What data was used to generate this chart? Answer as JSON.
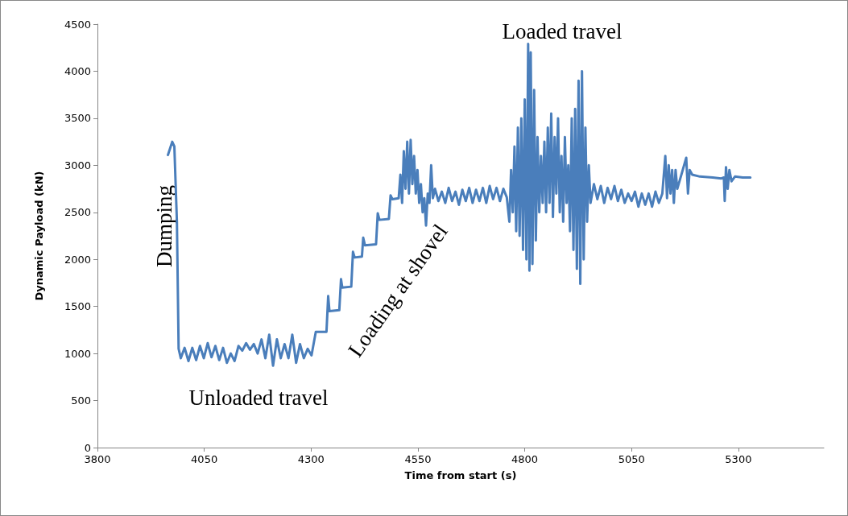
{
  "chart_data": {
    "type": "line",
    "xlabel": "Time from start (s)",
    "ylabel": "Dynamic Payload (kN)",
    "xlim": [
      3800,
      5500
    ],
    "xticks": [
      3800,
      4050,
      4300,
      4550,
      4800,
      5050,
      5300
    ],
    "ylim": [
      0,
      4500
    ],
    "yticks": [
      0,
      500,
      1000,
      1500,
      2000,
      2500,
      3000,
      3500,
      4000,
      4500
    ],
    "grid": false,
    "marker": "none",
    "line_style": "solid",
    "annotations": [
      "Dumping",
      "Unloaded travel",
      "Loading at shovel",
      "Loaded travel"
    ],
    "series": [
      {
        "color": "#4a7ebb",
        "x": [
          3965,
          3975,
          3980,
          3986,
          3990,
          3995,
          4004,
          4013,
          4022,
          4031,
          4040,
          4049,
          4058,
          4067,
          4076,
          4085,
          4094,
          4103,
          4112,
          4121,
          4130,
          4139,
          4148,
          4157,
          4166,
          4175,
          4184,
          4193,
          4202,
          4211,
          4220,
          4229,
          4238,
          4247,
          4256,
          4265,
          4274,
          4283,
          4292,
          4301,
          4311,
          4336,
          4340,
          4343,
          4366,
          4370,
          4373,
          4394,
          4398,
          4402,
          4419,
          4422,
          4426,
          4452,
          4456,
          4460,
          4482,
          4486,
          4490,
          4505,
          4509,
          4513,
          4517,
          4521,
          4525,
          4529,
          4533,
          4537,
          4541,
          4545,
          4549,
          4553,
          4557,
          4561,
          4565,
          4569,
          4573,
          4577,
          4581,
          4585,
          4590,
          4598,
          4606,
          4614,
          4622,
          4630,
          4638,
          4646,
          4654,
          4662,
          4670,
          4678,
          4686,
          4694,
          4702,
          4710,
          4718,
          4726,
          4734,
          4742,
          4750,
          4758,
          4764,
          4768,
          4772,
          4776,
          4780,
          4784,
          4788,
          4792,
          4796,
          4800,
          4804,
          4808,
          4811,
          4814,
          4818,
          4822,
          4826,
          4830,
          4834,
          4838,
          4842,
          4846,
          4850,
          4854,
          4858,
          4862,
          4866,
          4870,
          4874,
          4878,
          4882,
          4886,
          4890,
          4894,
          4898,
          4902,
          4906,
          4910,
          4914,
          4918,
          4922,
          4926,
          4930,
          4934,
          4938,
          4942,
          4946,
          4950,
          4954,
          4962,
          4970,
          4978,
          4986,
          4994,
          5002,
          5010,
          5018,
          5026,
          5034,
          5042,
          5050,
          5058,
          5066,
          5074,
          5082,
          5090,
          5098,
          5106,
          5114,
          5122,
          5129,
          5133,
          5137,
          5141,
          5145,
          5149,
          5153,
          5157,
          5178,
          5182,
          5186,
          5192,
          5210,
          5240,
          5260,
          5266,
          5268,
          5271,
          5275,
          5279,
          5284,
          5292,
          5310,
          5328
        ],
        "values": [
          3110,
          3250,
          3200,
          2400,
          1050,
          950,
          1060,
          920,
          1060,
          930,
          1080,
          950,
          1110,
          960,
          1080,
          930,
          1060,
          900,
          1000,
          920,
          1080,
          1030,
          1110,
          1040,
          1100,
          1000,
          1150,
          950,
          1200,
          870,
          1150,
          950,
          1100,
          950,
          1200,
          900,
          1100,
          950,
          1050,
          980,
          1230,
          1230,
          1610,
          1450,
          1460,
          1790,
          1700,
          1710,
          2080,
          2020,
          2030,
          2230,
          2150,
          2160,
          2490,
          2420,
          2430,
          2680,
          2640,
          2650,
          2900,
          2600,
          3150,
          2750,
          3250,
          2700,
          3270,
          2800,
          3100,
          2700,
          2950,
          2600,
          2800,
          2500,
          2650,
          2360,
          2700,
          2600,
          3000,
          2650,
          2750,
          2620,
          2720,
          2600,
          2760,
          2620,
          2720,
          2580,
          2740,
          2620,
          2760,
          2600,
          2740,
          2620,
          2760,
          2600,
          2780,
          2640,
          2760,
          2620,
          2750,
          2660,
          2400,
          2950,
          2500,
          3200,
          2300,
          3400,
          2250,
          3500,
          2100,
          3700,
          2000,
          4290,
          1880,
          4200,
          1950,
          3800,
          2200,
          3300,
          2500,
          3100,
          2600,
          3250,
          2500,
          3400,
          2600,
          3550,
          2450,
          3300,
          2700,
          3500,
          2500,
          3100,
          2400,
          3300,
          2600,
          3000,
          2300,
          3500,
          2100,
          3600,
          1900,
          3900,
          1740,
          4000,
          2000,
          3400,
          2400,
          3000,
          2600,
          2800,
          2640,
          2780,
          2600,
          2760,
          2640,
          2780,
          2620,
          2740,
          2600,
          2700,
          2620,
          2720,
          2560,
          2700,
          2580,
          2700,
          2560,
          2720,
          2600,
          2700,
          3100,
          2650,
          3000,
          2700,
          2950,
          2600,
          2950,
          2750,
          3080,
          2700,
          2950,
          2900,
          2880,
          2870,
          2860,
          2870,
          2620,
          2980,
          2750,
          2950,
          2830,
          2880,
          2870,
          2870
        ]
      }
    ]
  }
}
